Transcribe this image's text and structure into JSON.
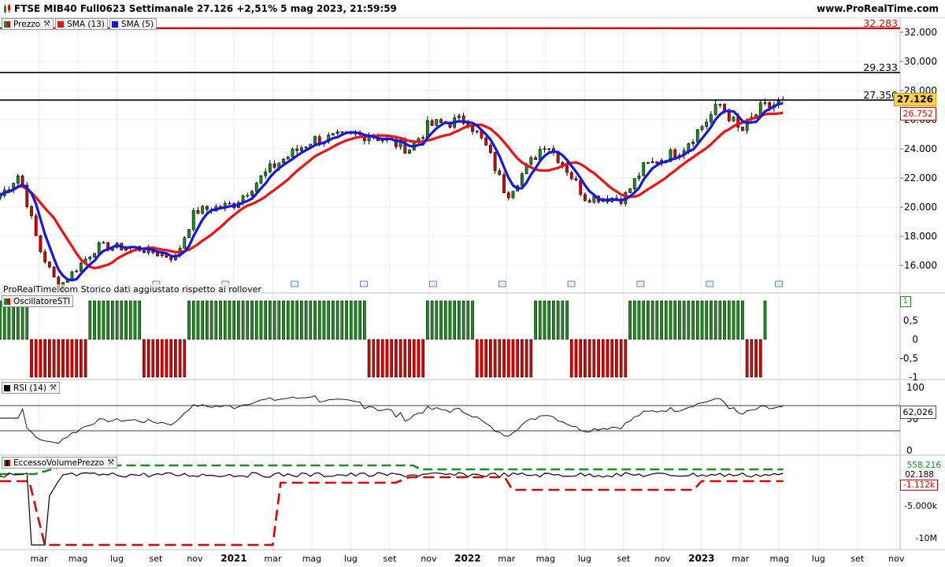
{
  "header": {
    "title": "FTSE MIB40 Full0623 Settimanale 27.126 +2,51% 5 mag 2023, 21:59:59",
    "site": "www.ProRealTime.com"
  },
  "legend": {
    "price": "Prezzo",
    "sma13": "SMA (13)",
    "sma5": "SMA (5)"
  },
  "note": "ProRealTime.com Storico dati aggiustato rispetto ai rollover",
  "colors": {
    "bull": "#1e8c1e",
    "bear": "#e00000",
    "sma13": "#ee1111",
    "sma5": "#1515dd",
    "grid": "#ececec",
    "highlight": "#ffd24d"
  },
  "price_panel": {
    "hlines": [
      {
        "label": "32.283",
        "color": "#e00000",
        "value": 32283
      },
      {
        "label": "29.233",
        "color": "#000000",
        "value": 29233
      },
      {
        "label": "27.350",
        "color": "#000000",
        "value": 27350
      }
    ],
    "last_price": "27.126",
    "sma_value": "26.752"
  },
  "sti_panel": {
    "label": "OscillatoreSTI",
    "value_tag": "1"
  },
  "rsi_panel": {
    "label": "RSI (14)",
    "value_tag": "62,026"
  },
  "evp_panel": {
    "label": "EccessoVolumePrezzo",
    "value_tags": [
      "558.216",
      "02.188",
      "-1.112k"
    ]
  },
  "x_axis_labels": [
    "mar",
    "mag",
    "lug",
    "set",
    "nov",
    "2021",
    "mar",
    "mag",
    "lug",
    "set",
    "nov",
    "2022",
    "mar",
    "mag",
    "lug",
    "set",
    "nov",
    "2023",
    "mar",
    "mag",
    "lug",
    "set",
    "nov"
  ],
  "chart_data": [
    {
      "type": "candlestick",
      "title": "FTSE MIB40 Full0623 Settimanale",
      "timeframe": "weekly",
      "x_range": [
        "2020-01",
        "2023-12"
      ],
      "ylim": [
        14000,
        33000
      ],
      "y_ticks": [
        "16.000",
        "18.000",
        "20.000",
        "22.000",
        "24.000",
        "26.000",
        "28.000",
        "30.000",
        "32.000"
      ],
      "series_close_anchors": {
        "x": [
          "2020-01",
          "2020-02",
          "2020-03",
          "2020-04",
          "2020-06",
          "2020-08",
          "2020-10",
          "2020-11",
          "2021-01",
          "2021-03",
          "2021-05",
          "2021-08",
          "2021-10",
          "2021-11",
          "2022-01",
          "2022-02",
          "2022-03",
          "2022-05",
          "2022-06",
          "2022-07",
          "2022-09",
          "2022-10",
          "2022-12",
          "2023-02",
          "2023-03",
          "2023-04",
          "2023-05"
        ],
        "y": [
          20800,
          22300,
          17200,
          14500,
          17300,
          17200,
          16500,
          19700,
          20200,
          22800,
          24600,
          25000,
          24000,
          25600,
          26000,
          24000,
          20800,
          24500,
          22800,
          20700,
          20600,
          22700,
          24000,
          27100,
          25100,
          26700,
          27126
        ]
      },
      "sma": [
        {
          "name": "SMA (13)",
          "last": 26752
        },
        {
          "name": "SMA (5)"
        }
      ]
    },
    {
      "type": "bar",
      "title": "OscillatoreSTI",
      "ylim": [
        -1,
        1
      ],
      "y_ticks": [
        "1",
        "0,5",
        "0",
        "-0,5",
        "-1"
      ],
      "values_description": "weekly +1 / -1 regime bars",
      "last": 1
    },
    {
      "type": "line",
      "title": "RSI (14)",
      "ylim": [
        0,
        100
      ],
      "y_ticks": [
        "100",
        "50",
        "0"
      ],
      "levels": [
        30,
        70
      ],
      "last": 62.026
    },
    {
      "type": "line",
      "title": "EccessoVolumePrezzo",
      "y_ticks": [
        "-5.000k",
        "-10M"
      ],
      "series": [
        {
          "name": "upper band",
          "last": 558216
        },
        {
          "name": "value",
          "last": 2188
        },
        {
          "name": "lower band",
          "last": -1112000
        }
      ]
    }
  ]
}
